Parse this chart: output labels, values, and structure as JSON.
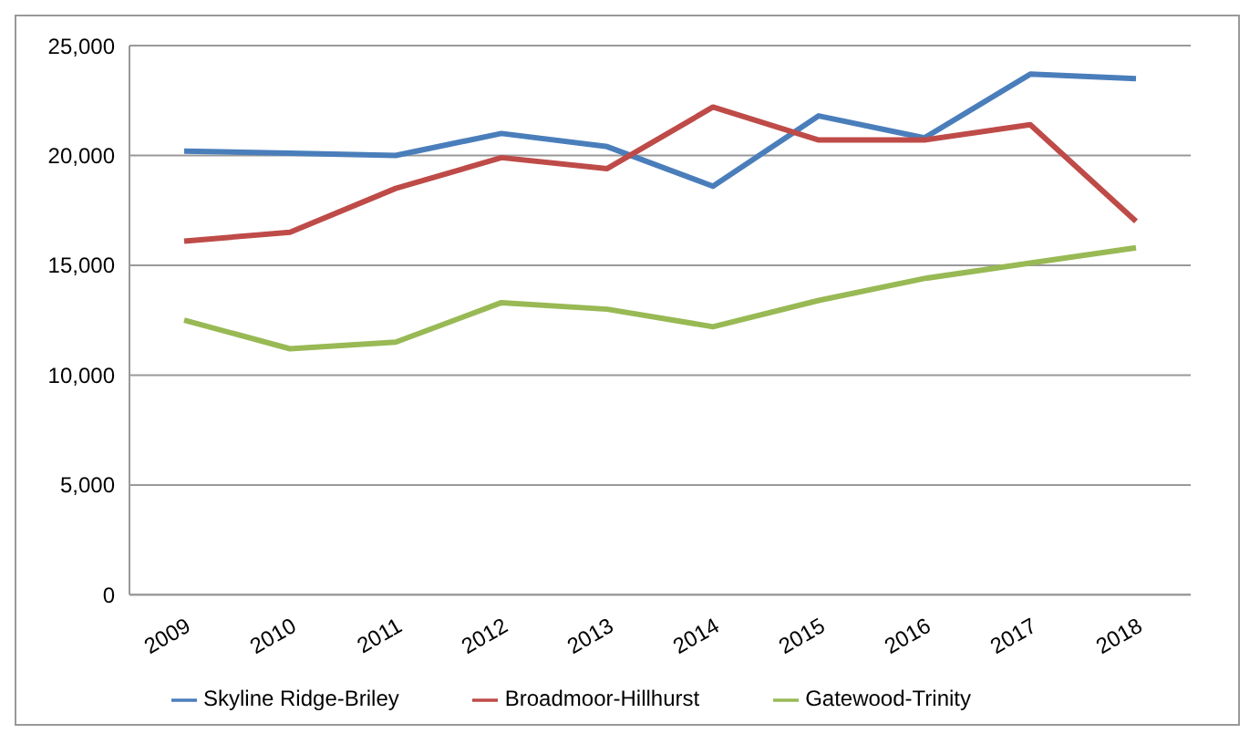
{
  "chart_data": {
    "type": "line",
    "categories": [
      "2009",
      "2010",
      "2011",
      "2012",
      "2013",
      "2014",
      "2015",
      "2016",
      "2017",
      "2018"
    ],
    "series": [
      {
        "name": "Skyline Ridge-Briley",
        "color": "#4a7ebb",
        "values": [
          20200,
          20100,
          20000,
          21000,
          20400,
          18600,
          21800,
          20800,
          23700,
          23500
        ]
      },
      {
        "name": "Broadmoor-Hillhurst",
        "color": "#be4b48",
        "values": [
          16100,
          16500,
          18500,
          19900,
          19400,
          22200,
          20700,
          20700,
          21400,
          17000
        ]
      },
      {
        "name": "Gatewood-Trinity",
        "color": "#98b954",
        "values": [
          12500,
          11200,
          11500,
          13300,
          13000,
          12200,
          13400,
          14400,
          15100,
          15800
        ]
      }
    ],
    "ylim": [
      0,
      25000
    ],
    "yticks": [
      0,
      {
        "value": 5000,
        "label": "5,000"
      },
      {
        "value": 10000,
        "label": "10,000"
      },
      {
        "value": 15000,
        "label": "15,000"
      },
      {
        "value": 20000,
        "label": "20,000"
      },
      {
        "value": 25000,
        "label": "25,000"
      }
    ],
    "grid": "y",
    "legend": "bottom",
    "marker": "none",
    "line_style": "solid"
  }
}
